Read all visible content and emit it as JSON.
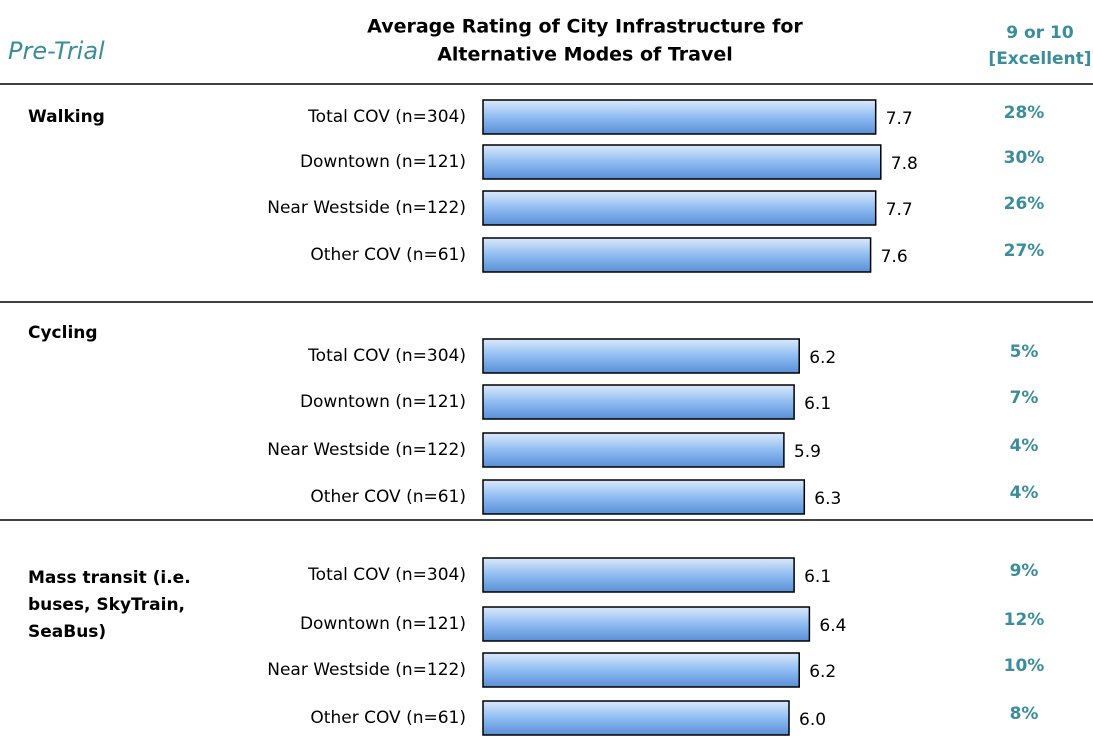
{
  "chart_data": {
    "type": "bar",
    "title": [
      "Average Rating of City Infrastructure for",
      "Alternative Modes of Travel"
    ],
    "subtitle": "Pre-Trial",
    "column_header": [
      "9 or 10",
      "[Excellent]"
    ],
    "color": "#7fb0f0",
    "xlim": [
      0,
      10
    ],
    "groups": [
      {
        "name": [
          "Walking"
        ],
        "categories": [
          "Total COV (n=304)",
          "Downtown (n=121)",
          "Near Westside (n=122)",
          "Other COV (n=61)"
        ],
        "values": [
          7.7,
          7.8,
          7.7,
          7.6
        ],
        "value_labels": [
          "7.7",
          "7.8",
          "7.7",
          "7.6"
        ],
        "excellent": [
          "28%",
          "30%",
          "26%",
          "27%"
        ]
      },
      {
        "name": [
          "Cycling"
        ],
        "categories": [
          "Total COV (n=304)",
          "Downtown (n=121)",
          "Near Westside (n=122)",
          "Other COV (n=61)"
        ],
        "values": [
          6.2,
          6.1,
          5.9,
          6.3
        ],
        "value_labels": [
          "6.2",
          "6.1",
          "5.9",
          "6.3"
        ],
        "excellent": [
          "5%",
          "7%",
          "4%",
          "4%"
        ]
      },
      {
        "name": [
          "Mass transit (i.e.",
          "buses, SkyTrain,",
          "SeaBus)"
        ],
        "categories": [
          "Total COV (n=304)",
          "Downtown (n=121)",
          "Near Westside (n=122)",
          "Other COV (n=61)"
        ],
        "values": [
          6.1,
          6.4,
          6.2,
          6.0
        ],
        "value_labels": [
          "6.1",
          "6.4",
          "6.2",
          "6.0"
        ],
        "excellent": [
          "9%",
          "12%",
          "10%",
          "8%"
        ]
      }
    ]
  }
}
